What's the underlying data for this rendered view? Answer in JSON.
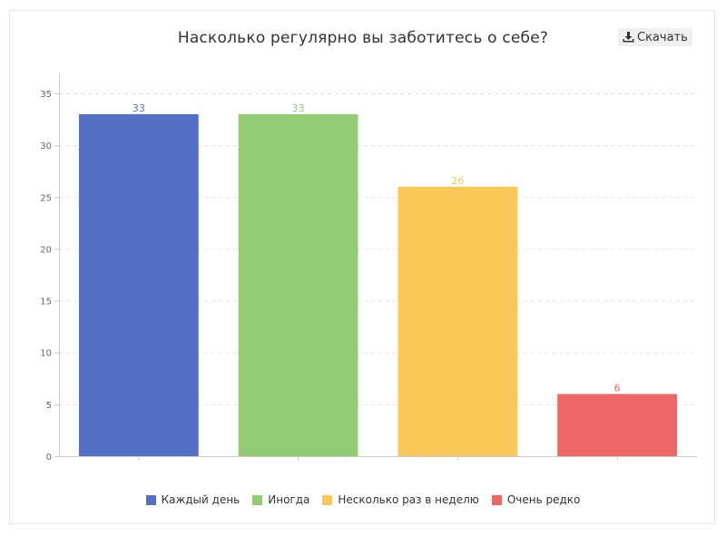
{
  "download": {
    "label": "Скачать",
    "icon": "download-icon"
  },
  "chart_data": {
    "type": "bar",
    "title": "Насколько регулярно вы заботитесь о себе?",
    "xlabel": "",
    "ylabel": "",
    "ylim": [
      0,
      35
    ],
    "yticks": [
      0,
      5,
      10,
      15,
      20,
      25,
      30,
      35
    ],
    "categories": [
      "Каждый день",
      "Иногда",
      "Несколько раз в неделю",
      "Очень редко"
    ],
    "values": [
      33,
      33,
      26,
      6
    ],
    "colors": [
      "#5470c6",
      "#91cc75",
      "#fac858",
      "#ee6666"
    ],
    "grid": true,
    "legend_position": "bottom"
  }
}
